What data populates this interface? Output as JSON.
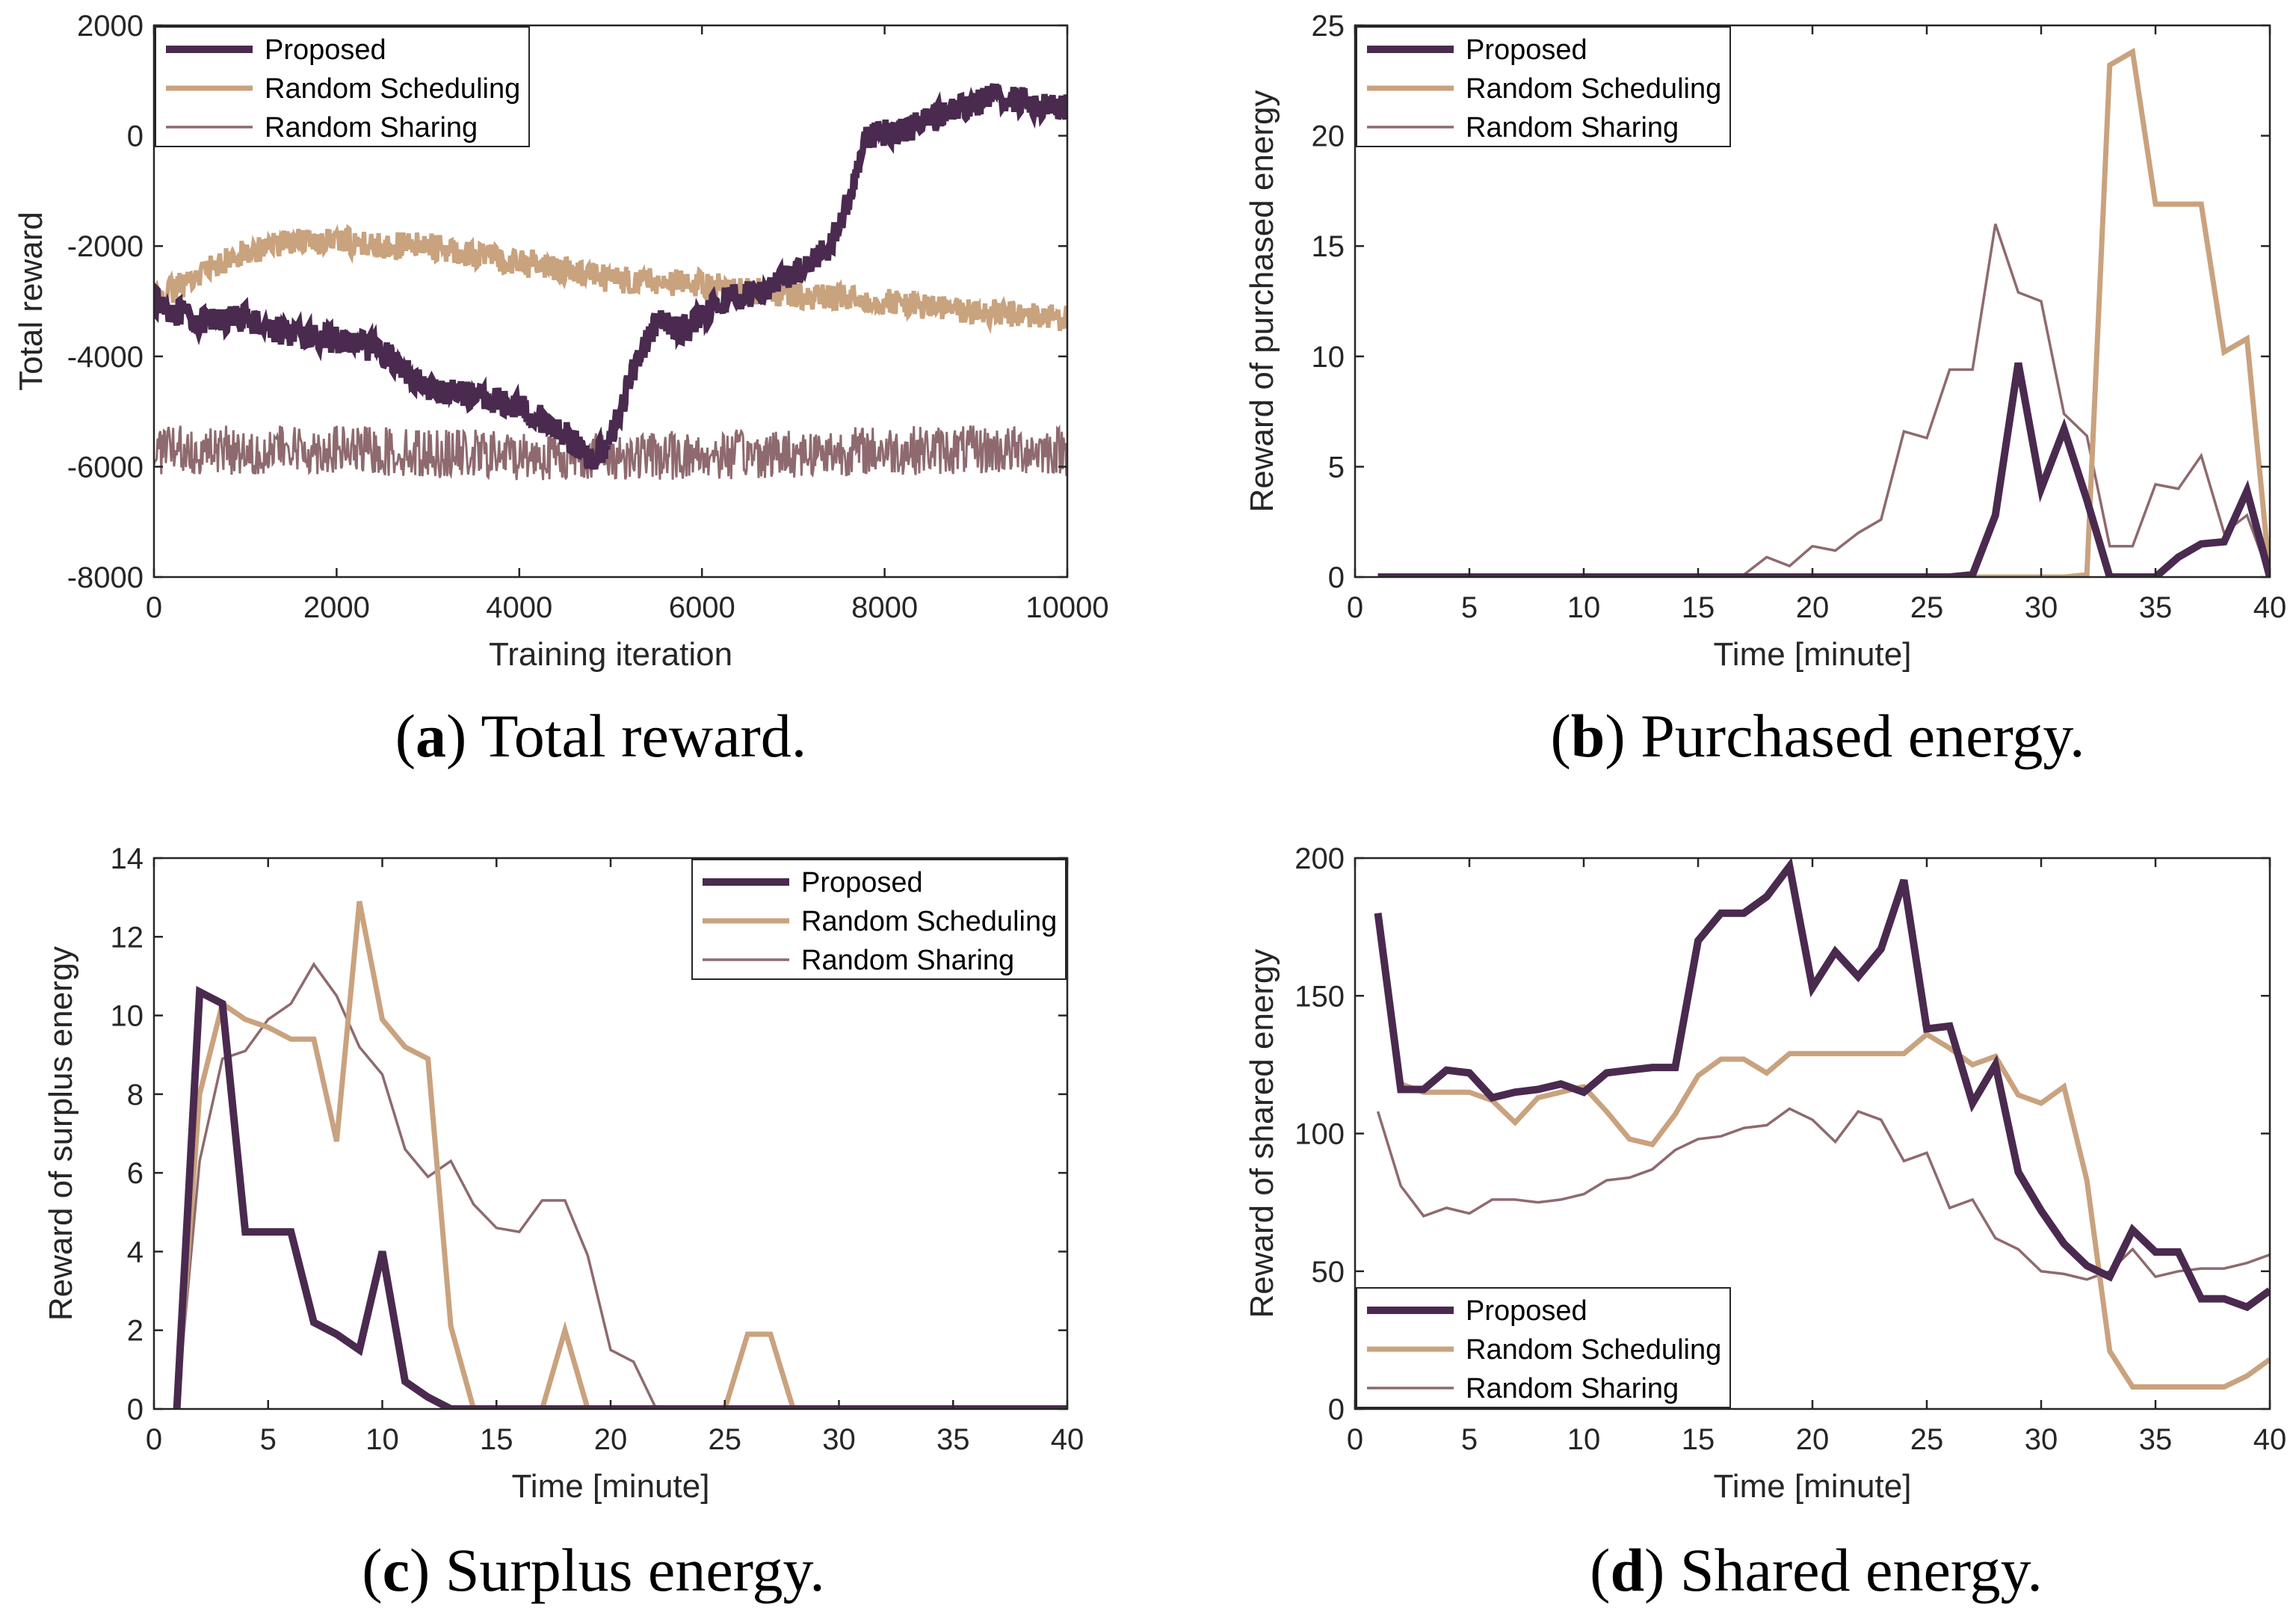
{
  "colors": {
    "proposed": "#4a2a4f",
    "random_scheduling": "#c9a27e",
    "random_sharing": "#8e6a6e",
    "axis": "#262626"
  },
  "chart_data": [
    {
      "id": "a",
      "type": "line",
      "caption_letter": "a",
      "caption_text": "Total reward.",
      "title": "",
      "xlabel": "Training iteration",
      "ylabel": "Total reward",
      "xlim": [
        0,
        10000
      ],
      "ylim": [
        -8000,
        2000
      ],
      "xticks": [
        0,
        2000,
        4000,
        6000,
        8000,
        10000
      ],
      "yticks": [
        -8000,
        -6000,
        -4000,
        -2000,
        0,
        2000
      ],
      "legend_position": "top-left",
      "noisy": true,
      "series": [
        {
          "name": "Proposed",
          "style": "proposed",
          "noise_amplitude": 250,
          "x": [
            0,
            500,
            1000,
            1500,
            2000,
            2500,
            3000,
            3500,
            4000,
            4500,
            4800,
            5000,
            5300,
            5500,
            5800,
            6200,
            6700,
            7000,
            7400,
            7600,
            7800,
            8200,
            8800,
            9200,
            9600,
            10000
          ],
          "values": [
            -3000,
            -3400,
            -3300,
            -3600,
            -3700,
            -3900,
            -4600,
            -4700,
            -4900,
            -5400,
            -5900,
            -5500,
            -4000,
            -3400,
            -3500,
            -3000,
            -2800,
            -2500,
            -2000,
            -1200,
            0,
            100,
            500,
            700,
            600,
            500
          ]
        },
        {
          "name": "Random Scheduling",
          "style": "random_scheduling",
          "noise_amplitude": 250,
          "x": [
            0,
            500,
            1000,
            1500,
            2000,
            2500,
            3000,
            4000,
            5000,
            6000,
            7000,
            8000,
            9000,
            10000
          ],
          "values": [
            -3000,
            -2500,
            -2100,
            -1900,
            -1900,
            -2000,
            -2000,
            -2300,
            -2600,
            -2700,
            -2900,
            -3000,
            -3200,
            -3300
          ]
        },
        {
          "name": "Random Sharing",
          "style": "random_sharing",
          "noise_amplitude": 450,
          "x": [
            0,
            2000,
            4000,
            6000,
            8000,
            10000
          ],
          "values": [
            -5700,
            -5700,
            -5800,
            -5800,
            -5700,
            -5700
          ]
        }
      ]
    },
    {
      "id": "b",
      "type": "line",
      "caption_letter": "b",
      "caption_text": "Purchased energy.",
      "title": "",
      "xlabel": "Time [minute]",
      "ylabel": "Reward of purchased energy",
      "xlim": [
        0,
        40
      ],
      "ylim": [
        0,
        25
      ],
      "xticks": [
        0,
        5,
        10,
        15,
        20,
        25,
        30,
        35,
        40
      ],
      "yticks": [
        0,
        5,
        10,
        15,
        20,
        25
      ],
      "legend_position": "top-left",
      "noisy": false,
      "series": [
        {
          "name": "Proposed",
          "style": "proposed",
          "x": [
            1,
            2,
            3,
            4,
            5,
            6,
            7,
            8,
            9,
            10,
            11,
            12,
            13,
            14,
            15,
            16,
            17,
            18,
            19,
            20,
            21,
            22,
            23,
            24,
            25,
            26,
            27,
            28,
            29,
            30,
            31,
            32,
            33,
            34,
            35,
            36,
            37,
            38,
            39,
            40
          ],
          "values": [
            0,
            0,
            0,
            0,
            0,
            0,
            0,
            0,
            0,
            0,
            0,
            0,
            0,
            0,
            0,
            0,
            0,
            0,
            0,
            0,
            0,
            0,
            0,
            0,
            0,
            0,
            0.1,
            2.8,
            9.7,
            4.0,
            6.7,
            3.5,
            0,
            0,
            0,
            0.9,
            1.5,
            1.6,
            3.9,
            0
          ]
        },
        {
          "name": "Random Scheduling",
          "style": "random_scheduling",
          "x": [
            1,
            2,
            3,
            4,
            5,
            6,
            7,
            8,
            9,
            10,
            11,
            12,
            13,
            14,
            15,
            16,
            17,
            18,
            19,
            20,
            21,
            22,
            23,
            24,
            25,
            26,
            27,
            28,
            29,
            30,
            31,
            32,
            33,
            34,
            35,
            36,
            37,
            38,
            39,
            40
          ],
          "values": [
            0,
            0,
            0,
            0,
            0,
            0,
            0,
            0,
            0,
            0,
            0,
            0,
            0,
            0,
            0,
            0,
            0,
            0,
            0,
            0,
            0,
            0,
            0,
            0,
            0,
            0,
            0,
            0,
            0,
            0,
            0,
            0.1,
            23.2,
            23.8,
            16.9,
            16.9,
            16.9,
            10.2,
            10.8,
            0
          ]
        },
        {
          "name": "Random Sharing",
          "style": "random_sharing",
          "x": [
            1,
            2,
            3,
            4,
            5,
            6,
            7,
            8,
            9,
            10,
            11,
            12,
            13,
            14,
            15,
            16,
            17,
            18,
            19,
            20,
            21,
            22,
            23,
            24,
            25,
            26,
            27,
            28,
            29,
            30,
            31,
            32,
            33,
            34,
            35,
            36,
            37,
            38,
            39,
            40
          ],
          "values": [
            0,
            0,
            0,
            0,
            0,
            0,
            0,
            0,
            0,
            0,
            0,
            0,
            0,
            0,
            0,
            0,
            0.1,
            0.9,
            0.5,
            1.4,
            1.2,
            2.0,
            2.6,
            6.6,
            6.3,
            9.4,
            9.4,
            16.0,
            12.9,
            12.5,
            7.4,
            6.4,
            1.4,
            1.4,
            4.2,
            4.0,
            5.5,
            2.0,
            2.8,
            0
          ]
        }
      ]
    },
    {
      "id": "c",
      "type": "line",
      "caption_letter": "c",
      "caption_text": "Surplus energy.",
      "title": "",
      "xlabel": "Time [minute]",
      "ylabel": "Reward of surplus energy",
      "xlim": [
        0,
        40
      ],
      "ylim": [
        0,
        14
      ],
      "xticks": [
        0,
        5,
        10,
        15,
        20,
        25,
        30,
        35,
        40
      ],
      "yticks": [
        0,
        2,
        4,
        6,
        8,
        10,
        12,
        14
      ],
      "legend_position": "top-right",
      "noisy": false,
      "series": [
        {
          "name": "Proposed",
          "style": "proposed",
          "x": [
            1,
            2,
            3,
            4,
            5,
            6,
            7,
            8,
            9,
            10,
            11,
            12,
            13,
            14,
            15,
            16,
            17,
            18,
            19,
            20,
            21,
            22,
            23,
            24,
            25,
            26,
            27,
            28,
            29,
            30,
            31,
            32,
            33,
            34,
            35,
            36,
            37,
            38,
            39,
            40
          ],
          "values": [
            0,
            10.6,
            10.3,
            4.5,
            4.5,
            4.5,
            2.2,
            1.9,
            1.5,
            4.0,
            0.7,
            0.3,
            0,
            0,
            0,
            0,
            0,
            0,
            0,
            0,
            0,
            0,
            0,
            0,
            0,
            0,
            0,
            0,
            0,
            0,
            0,
            0,
            0,
            0,
            0,
            0,
            0,
            0,
            0,
            0
          ]
        },
        {
          "name": "Random Scheduling",
          "style": "random_scheduling",
          "x": [
            1,
            2,
            3,
            4,
            5,
            6,
            7,
            8,
            9,
            10,
            11,
            12,
            13,
            14,
            15,
            16,
            17,
            18,
            19,
            20,
            21,
            22,
            23,
            24,
            25,
            26,
            27,
            28,
            29,
            30,
            31,
            32,
            33,
            34,
            35,
            36,
            37,
            38,
            39,
            40
          ],
          "values": [
            0,
            8.0,
            10.3,
            9.9,
            9.7,
            9.4,
            9.4,
            6.8,
            12.9,
            9.9,
            9.2,
            8.9,
            2.1,
            0,
            0,
            0,
            0,
            2.0,
            0,
            0,
            0,
            0,
            0,
            0,
            0,
            1.9,
            1.9,
            0,
            0,
            0,
            0,
            0,
            0,
            0,
            0,
            0,
            0,
            0,
            0,
            0
          ]
        },
        {
          "name": "Random Sharing",
          "style": "random_sharing",
          "x": [
            1,
            2,
            3,
            4,
            5,
            6,
            7,
            8,
            9,
            10,
            11,
            12,
            13,
            14,
            15,
            16,
            17,
            18,
            19,
            20,
            21,
            22,
            23,
            24,
            25,
            26,
            27,
            28,
            29,
            30,
            31,
            32,
            33,
            34,
            35,
            36,
            37,
            38,
            39,
            40
          ],
          "values": [
            0,
            6.3,
            8.9,
            9.1,
            9.9,
            10.3,
            11.3,
            10.5,
            9.2,
            8.5,
            6.6,
            5.9,
            6.3,
            5.2,
            4.6,
            4.5,
            5.3,
            5.3,
            3.9,
            1.5,
            1.2,
            0,
            0,
            0,
            0,
            0,
            0,
            0,
            0,
            0,
            0,
            0,
            0,
            0,
            0,
            0,
            0,
            0,
            0,
            0
          ]
        }
      ]
    },
    {
      "id": "d",
      "type": "line",
      "caption_letter": "d",
      "caption_text": "Shared energy.",
      "title": "",
      "xlabel": "Time [minute]",
      "ylabel": "Reward of shared energy",
      "xlim": [
        0,
        40
      ],
      "ylim": [
        0,
        200
      ],
      "xticks": [
        0,
        5,
        10,
        15,
        20,
        25,
        30,
        35,
        40
      ],
      "yticks": [
        0,
        50,
        100,
        150,
        200
      ],
      "legend_position": "bottom-left",
      "noisy": false,
      "series": [
        {
          "name": "Proposed",
          "style": "proposed",
          "x": [
            1,
            2,
            3,
            4,
            5,
            6,
            7,
            8,
            9,
            10,
            11,
            12,
            13,
            14,
            15,
            16,
            17,
            18,
            19,
            20,
            21,
            22,
            23,
            24,
            25,
            26,
            27,
            28,
            29,
            30,
            31,
            32,
            33,
            34,
            35,
            36,
            37,
            38,
            39,
            40
          ],
          "values": [
            180,
            116,
            116,
            123,
            122,
            113,
            115,
            116,
            118,
            115,
            122,
            123,
            124,
            124,
            170,
            180,
            180,
            186,
            197,
            153,
            166,
            157,
            167,
            192,
            138,
            139,
            111,
            125,
            86,
            72,
            60,
            52,
            48,
            65,
            57,
            57,
            40,
            40,
            37,
            43
          ]
        },
        {
          "name": "Random Scheduling",
          "style": "random_scheduling",
          "x": [
            1,
            2,
            3,
            4,
            5,
            6,
            7,
            8,
            9,
            10,
            11,
            12,
            13,
            14,
            15,
            16,
            17,
            18,
            19,
            20,
            21,
            22,
            23,
            24,
            25,
            26,
            27,
            28,
            29,
            30,
            31,
            32,
            33,
            34,
            35,
            36,
            37,
            38,
            39,
            40
          ],
          "values": [
            180,
            118,
            115,
            115,
            115,
            112,
            104,
            113,
            115,
            117,
            108,
            98,
            96,
            107,
            121,
            127,
            127,
            122,
            129,
            129,
            129,
            129,
            129,
            129,
            136,
            131,
            125,
            128,
            114,
            111,
            117,
            83,
            21,
            8,
            8,
            8,
            8,
            8,
            12,
            18
          ]
        },
        {
          "name": "Random Sharing",
          "style": "random_sharing",
          "x": [
            1,
            2,
            3,
            4,
            5,
            6,
            7,
            8,
            9,
            10,
            11,
            12,
            13,
            14,
            15,
            16,
            17,
            18,
            19,
            20,
            21,
            22,
            23,
            24,
            25,
            26,
            27,
            28,
            29,
            30,
            31,
            32,
            33,
            34,
            35,
            36,
            37,
            38,
            39,
            40
          ],
          "values": [
            108,
            81,
            70,
            73,
            71,
            76,
            76,
            75,
            76,
            78,
            83,
            84,
            87,
            94,
            98,
            99,
            102,
            103,
            109,
            105,
            97,
            108,
            105,
            90,
            93,
            73,
            76,
            62,
            58,
            50,
            49,
            47,
            50,
            58,
            48,
            50,
            51,
            51,
            53,
            56
          ]
        }
      ]
    }
  ]
}
